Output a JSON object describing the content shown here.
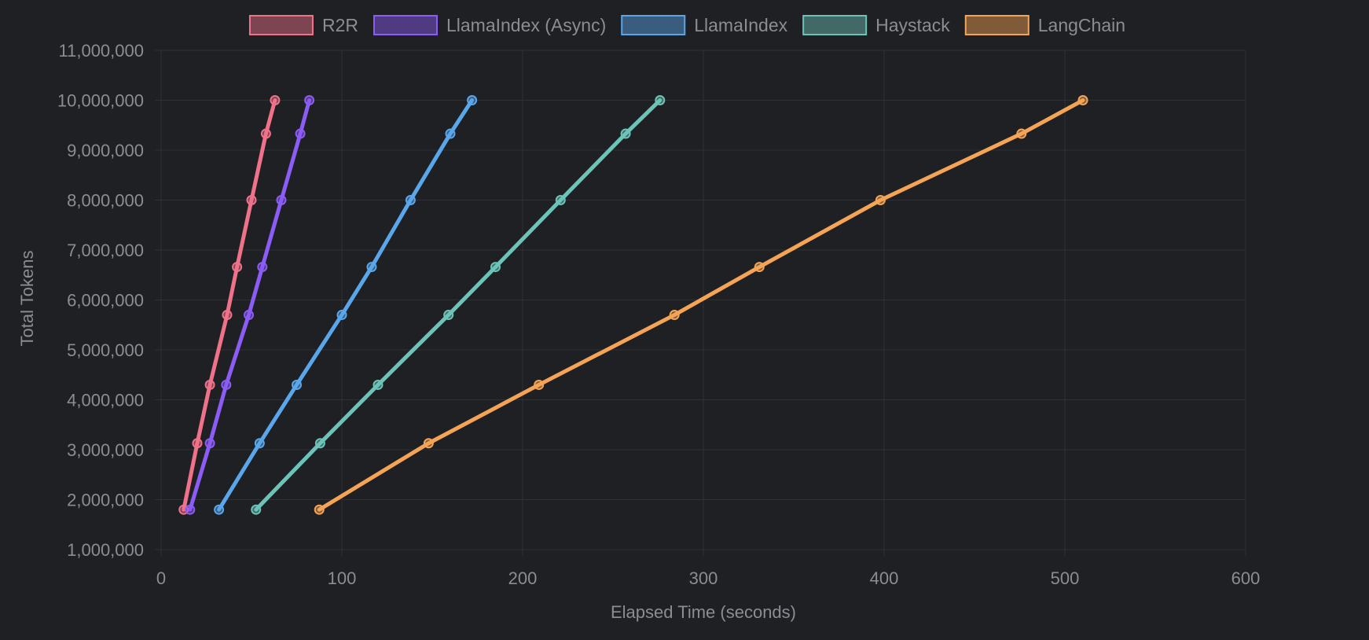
{
  "chart_data": {
    "type": "line",
    "xlabel": "Elapsed Time (seconds)",
    "ylabel": "Total Tokens",
    "xlim": [
      0,
      600
    ],
    "ylim": [
      1000000,
      11000000
    ],
    "x_ticks": [
      0,
      100,
      200,
      300,
      400,
      500,
      600
    ],
    "y_ticks": [
      1000000,
      2000000,
      3000000,
      4000000,
      5000000,
      6000000,
      7000000,
      8000000,
      9000000,
      10000000,
      11000000
    ],
    "x_tick_labels": [
      "0",
      "100",
      "200",
      "300",
      "400",
      "500",
      "600"
    ],
    "y_tick_labels": [
      "1,000,000",
      "2,000,000",
      "3,000,000",
      "4,000,000",
      "5,000,000",
      "6,000,000",
      "7,000,000",
      "8,000,000",
      "9,000,000",
      "10,000,000",
      "11,000,000"
    ],
    "grid": true,
    "legend_position": "top",
    "series": [
      {
        "name": "R2R",
        "color": "#f0728a",
        "points": [
          [
            12.5,
            1800000
          ],
          [
            20,
            3130000
          ],
          [
            27,
            4300000
          ],
          [
            36.5,
            5700000
          ],
          [
            42,
            6660000
          ],
          [
            50,
            8000000
          ],
          [
            58,
            9330000
          ],
          [
            63,
            10000000
          ]
        ]
      },
      {
        "name": "LlamaIndex (Async)",
        "color": "#8b5cf6",
        "points": [
          [
            16,
            1800000
          ],
          [
            27,
            3130000
          ],
          [
            36,
            4300000
          ],
          [
            48.5,
            5700000
          ],
          [
            56,
            6660000
          ],
          [
            66.5,
            8000000
          ],
          [
            77,
            9330000
          ],
          [
            82,
            10000000
          ]
        ]
      },
      {
        "name": "LlamaIndex",
        "color": "#5aa6ea",
        "points": [
          [
            32,
            1800000
          ],
          [
            54.5,
            3130000
          ],
          [
            75,
            4300000
          ],
          [
            100,
            5700000
          ],
          [
            116.5,
            6660000
          ],
          [
            138,
            8000000
          ],
          [
            160,
            9330000
          ],
          [
            172,
            10000000
          ]
        ]
      },
      {
        "name": "Haystack",
        "color": "#6cc4b8",
        "points": [
          [
            52.5,
            1800000
          ],
          [
            88,
            3130000
          ],
          [
            120,
            4300000
          ],
          [
            159,
            5700000
          ],
          [
            185,
            6660000
          ],
          [
            221,
            8000000
          ],
          [
            257,
            9330000
          ],
          [
            276,
            10000000
          ]
        ]
      },
      {
        "name": "LangChain",
        "color": "#f5a456",
        "points": [
          [
            87.5,
            1800000
          ],
          [
            148,
            3130000
          ],
          [
            209,
            4300000
          ],
          [
            284,
            5700000
          ],
          [
            331,
            6660000
          ],
          [
            398,
            8000000
          ],
          [
            476,
            9330000
          ],
          [
            510,
            10000000
          ]
        ]
      }
    ]
  }
}
